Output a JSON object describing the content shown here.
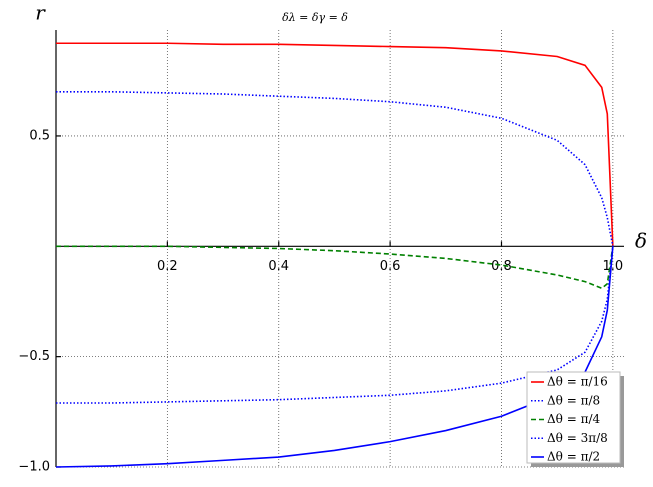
{
  "chart_data": {
    "type": "line",
    "title": "δλ = δγ = δ",
    "x_label": "δ",
    "y_label": "r",
    "x": [
      0,
      0.1,
      0.2,
      0.3,
      0.4,
      0.5,
      0.6,
      0.7,
      0.8,
      0.9,
      0.95,
      0.98,
      0.99,
      1.0
    ],
    "series": [
      {
        "name": "Δθ = π/16",
        "color": "#ff0000",
        "dash": "solid",
        "values": [
          0.92,
          0.92,
          0.92,
          0.915,
          0.915,
          0.91,
          0.905,
          0.9,
          0.885,
          0.86,
          0.82,
          0.72,
          0.6,
          0
        ]
      },
      {
        "name": "Δθ = π/8",
        "color": "#0000ff",
        "dash": "dotted",
        "values": [
          0.7,
          0.7,
          0.695,
          0.69,
          0.68,
          0.67,
          0.655,
          0.63,
          0.58,
          0.48,
          0.37,
          0.22,
          0.13,
          0
        ]
      },
      {
        "name": "Δθ = π/4",
        "color": "#008000",
        "dash": "dashed",
        "values": [
          0,
          0,
          0,
          -0.005,
          -0.01,
          -0.02,
          -0.035,
          -0.055,
          -0.085,
          -0.13,
          -0.16,
          -0.19,
          -0.17,
          0
        ]
      },
      {
        "name": "Δθ = 3π/8",
        "color": "#0000ff",
        "dash": "dotted",
        "values": [
          -0.71,
          -0.71,
          -0.705,
          -0.7,
          -0.695,
          -0.685,
          -0.675,
          -0.655,
          -0.62,
          -0.56,
          -0.48,
          -0.34,
          -0.24,
          0
        ]
      },
      {
        "name": "Δθ = π/2",
        "color": "#0000ff",
        "dash": "solid",
        "values": [
          -1,
          -0.995,
          -0.985,
          -0.97,
          -0.955,
          -0.925,
          -0.885,
          -0.835,
          -0.77,
          -0.67,
          -0.57,
          -0.41,
          -0.29,
          0
        ]
      }
    ],
    "xlim": [
      0,
      1.02
    ],
    "ylim": [
      -1.0,
      0.98
    ],
    "xticks": [
      0.2,
      0.4,
      0.6,
      0.8,
      {
        "value": 1,
        "label": "1.0"
      }
    ],
    "yticks": [
      {
        "value": -1,
        "label": "−1.0"
      },
      {
        "value": -0.5,
        "label": "−0.5"
      },
      0.5
    ],
    "grid": true,
    "legend": "lower right"
  }
}
